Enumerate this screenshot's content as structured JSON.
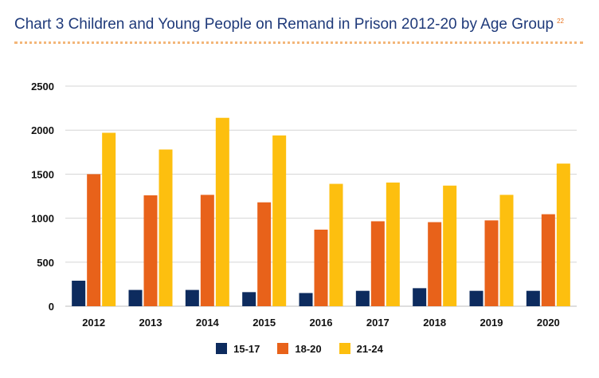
{
  "header": {
    "title": "Chart 3 Children and Young People on Remand in Prison 2012-20 by Age Group",
    "footnote": "22"
  },
  "chart_data": {
    "type": "bar",
    "categories": [
      "2012",
      "2013",
      "2014",
      "2015",
      "2016",
      "2017",
      "2018",
      "2019",
      "2020"
    ],
    "series": [
      {
        "name": "15-17",
        "color": "#0d2b5e",
        "values": [
          290,
          185,
          185,
          160,
          150,
          175,
          205,
          175,
          175
        ]
      },
      {
        "name": "18-20",
        "color": "#e8621a",
        "values": [
          1500,
          1260,
          1265,
          1180,
          870,
          965,
          955,
          975,
          1045
        ]
      },
      {
        "name": "21-24",
        "color": "#fdbf0f",
        "values": [
          1970,
          1780,
          2140,
          1940,
          1390,
          1405,
          1370,
          1265,
          1620
        ]
      }
    ],
    "ylim": [
      0,
      2500
    ],
    "yticks": [
      0,
      500,
      1000,
      1500,
      2000,
      2500
    ],
    "grid": true,
    "legend": "bottom"
  }
}
